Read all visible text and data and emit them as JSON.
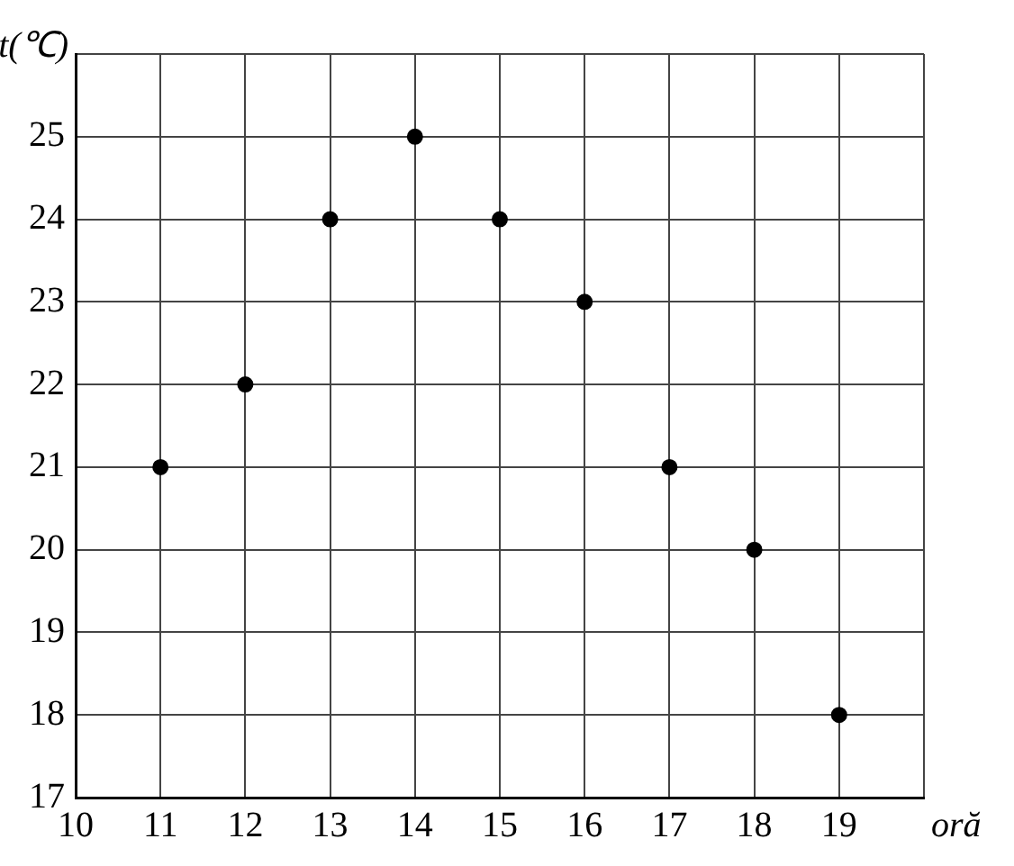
{
  "chart_data": {
    "type": "scatter",
    "xlabel": "oră",
    "ylabel": "t(℃)",
    "x": [
      11,
      12,
      13,
      14,
      15,
      16,
      17,
      18,
      19
    ],
    "series": [
      {
        "color": "#000000",
        "values": [
          21,
          22,
          24,
          25,
          24,
          23,
          21,
          20,
          18
        ]
      }
    ],
    "xlim": [
      10,
      20
    ],
    "xticks": [
      10,
      11,
      12,
      13,
      14,
      15,
      16,
      17,
      18,
      19,
      {
        "value": 20,
        "label": null
      }
    ],
    "ylim": [
      17,
      26
    ],
    "yticks": [
      17,
      18,
      19,
      20,
      21,
      22,
      23,
      24,
      25,
      {
        "value": 26,
        "label": null
      }
    ],
    "grid": true,
    "marker": "circle",
    "legend": false
  }
}
